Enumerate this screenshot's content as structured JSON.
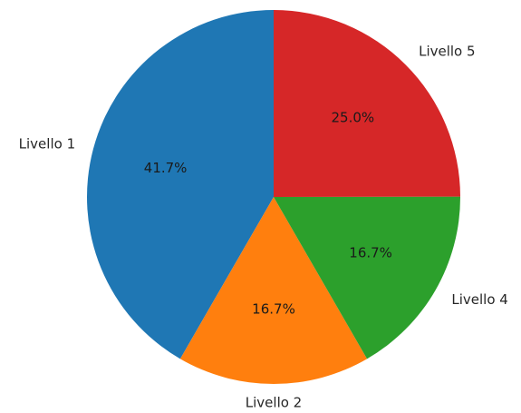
{
  "chart_data": {
    "type": "pie",
    "title": "",
    "start_angle_deg": 90,
    "direction": "counterclockwise",
    "slices": [
      {
        "label": "Livello 1",
        "percent": 41.7,
        "pct_text": "41.7%",
        "color": "#1f77b4"
      },
      {
        "label": "Livello 2",
        "percent": 16.7,
        "pct_text": "16.7%",
        "color": "#ff7f0e"
      },
      {
        "label": "Livello 4",
        "percent": 16.7,
        "pct_text": "16.7%",
        "color": "#2ca02c"
      },
      {
        "label": "Livello 5",
        "percent": 25.0,
        "pct_text": "25.0%",
        "color": "#d62728"
      }
    ]
  }
}
